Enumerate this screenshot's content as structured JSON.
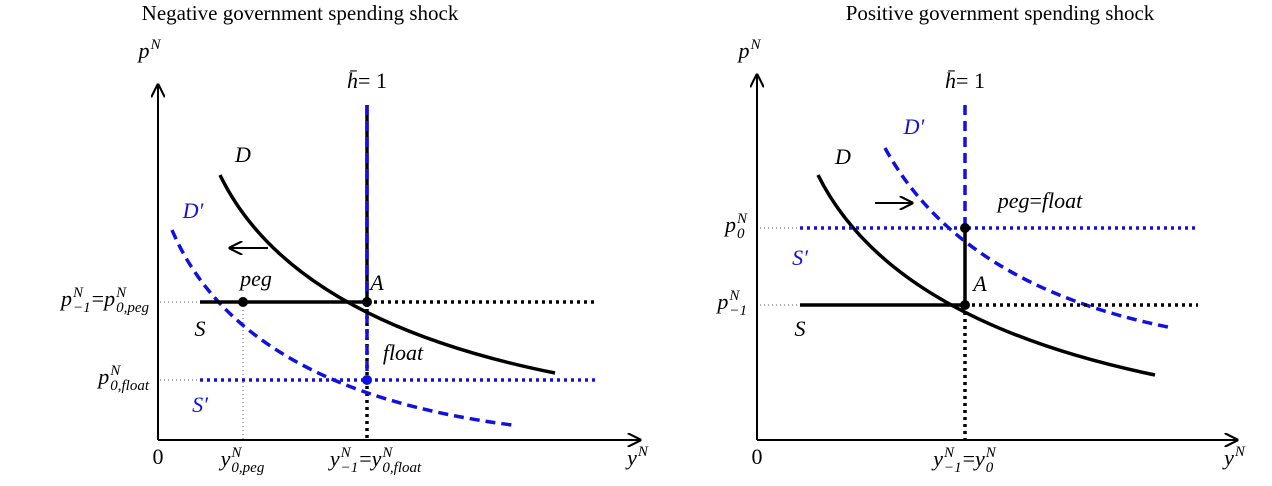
{
  "panels": [
    {
      "title": "Negative government spending shock",
      "labels": {
        "y_axis": {
          "pieces": [
            {
              "text": "p",
              "sup": "N"
            }
          ]
        },
        "x_axis": {
          "pieces": [
            {
              "text": "y",
              "sup": "N"
            }
          ]
        },
        "origin": {
          "pieces": [
            {
              "text": "0",
              "roman": true
            }
          ]
        },
        "h_bar": {
          "pieces": [
            {
              "text": "h̄"
            },
            {
              "text": " = 1",
              "roman": true
            }
          ]
        },
        "D": {
          "pieces": [
            {
              "text": "D"
            }
          ]
        },
        "D_prime": {
          "pieces": [
            {
              "text": "D′"
            }
          ],
          "color": "#1010e0"
        },
        "S": {
          "pieces": [
            {
              "text": "S"
            }
          ]
        },
        "S_prime": {
          "pieces": [
            {
              "text": "S′"
            }
          ],
          "color": "#1010e0"
        },
        "A": {
          "pieces": [
            {
              "text": "A"
            }
          ]
        },
        "peg": {
          "pieces": [
            {
              "text": "peg"
            }
          ]
        },
        "float": {
          "pieces": [
            {
              "text": "float"
            }
          ]
        },
        "p_tick_1": {
          "pieces": [
            {
              "text": "p",
              "sup": "N",
              "sub": "−1"
            },
            {
              "text": " = ",
              "roman": true
            },
            {
              "text": "p",
              "sup": "N",
              "sub": "0,peg"
            }
          ]
        },
        "p_tick_2": {
          "pieces": [
            {
              "text": "p",
              "sup": "N",
              "sub": "0,float"
            }
          ]
        },
        "y_tick_1": {
          "pieces": [
            {
              "text": "y",
              "sup": "N",
              "sub": "0,peg"
            }
          ]
        },
        "y_tick_2": {
          "pieces": [
            {
              "text": "y",
              "sup": "N",
              "sub": "−1"
            },
            {
              "text": " = ",
              "roman": true
            },
            {
              "text": "y",
              "sup": "N",
              "sub": "0,float"
            }
          ]
        }
      }
    },
    {
      "title": "Positive government spending shock",
      "labels": {
        "y_axis": {
          "pieces": [
            {
              "text": "p",
              "sup": "N"
            }
          ]
        },
        "x_axis": {
          "pieces": [
            {
              "text": "y",
              "sup": "N"
            }
          ]
        },
        "origin": {
          "pieces": [
            {
              "text": "0",
              "roman": true
            }
          ]
        },
        "h_bar": {
          "pieces": [
            {
              "text": "h̄"
            },
            {
              "text": " = 1",
              "roman": true
            }
          ]
        },
        "D": {
          "pieces": [
            {
              "text": "D"
            }
          ]
        },
        "D_prime": {
          "pieces": [
            {
              "text": "D′"
            }
          ],
          "color": "#1010e0"
        },
        "S": {
          "pieces": [
            {
              "text": "S"
            }
          ]
        },
        "S_prime": {
          "pieces": [
            {
              "text": "S′"
            }
          ],
          "color": "#1010e0"
        },
        "A": {
          "pieces": [
            {
              "text": "A"
            }
          ]
        },
        "peg_float": {
          "pieces": [
            {
              "text": "peg"
            },
            {
              "text": " = ",
              "roman": true
            },
            {
              "text": "float"
            }
          ]
        },
        "p_tick_1": {
          "pieces": [
            {
              "text": "p",
              "sup": "N",
              "sub": "0"
            }
          ]
        },
        "p_tick_2": {
          "pieces": [
            {
              "text": "p",
              "sup": "N",
              "sub": "−1"
            }
          ]
        },
        "y_tick_1": {
          "pieces": [
            {
              "text": "y",
              "sup": "N",
              "sub": "−1"
            },
            {
              "text": " = ",
              "roman": true
            },
            {
              "text": "y",
              "sup": "N",
              "sub": "0"
            }
          ]
        }
      }
    }
  ]
}
